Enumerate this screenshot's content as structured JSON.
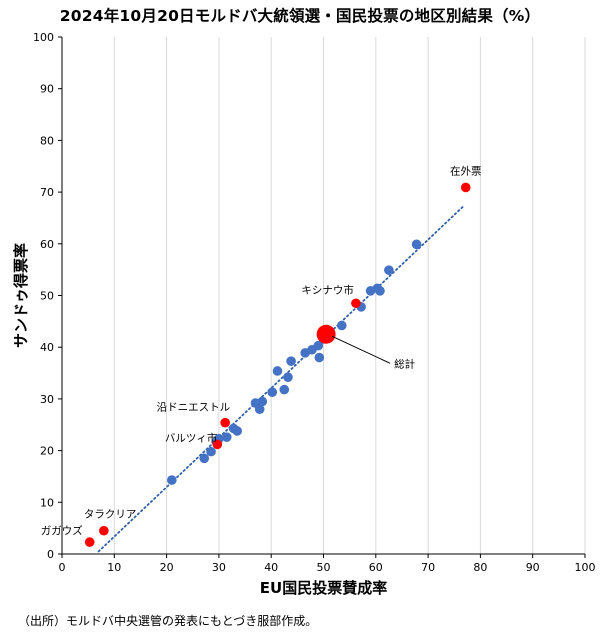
{
  "chart_data": {
    "type": "scatter",
    "title": "2024年10月20日モルドバ大統領選・国民投票の地区別結果（%）",
    "xlabel": "EU国民投票賛成率",
    "ylabel": "サンドゥ得票率",
    "xlim": [
      0,
      100
    ],
    "ylim": [
      0,
      100
    ],
    "xticks": [
      "0",
      "10",
      "20",
      "30",
      "40",
      "50",
      "60",
      "70",
      "80",
      "90",
      "100"
    ],
    "yticks": [
      "0",
      "10",
      "20",
      "30",
      "40",
      "50",
      "60",
      "70",
      "80",
      "90",
      "100"
    ],
    "grid": "vertical",
    "colors": {
      "district": "#4472C4",
      "highlight": "#FF0000",
      "trend": "#2E5FA8"
    },
    "trendline": {
      "x": [
        7,
        77
      ],
      "y": [
        0.5,
        67.5
      ],
      "style": "dotted"
    },
    "districts": [
      {
        "x": 21.0,
        "y": 14.3
      },
      {
        "x": 27.2,
        "y": 18.5
      },
      {
        "x": 28.5,
        "y": 19.8
      },
      {
        "x": 29.5,
        "y": 21.7
      },
      {
        "x": 30.0,
        "y": 22.3
      },
      {
        "x": 31.5,
        "y": 22.6
      },
      {
        "x": 32.8,
        "y": 24.3
      },
      {
        "x": 33.5,
        "y": 23.8
      },
      {
        "x": 37.0,
        "y": 29.2
      },
      {
        "x": 37.8,
        "y": 28.0
      },
      {
        "x": 38.3,
        "y": 29.5
      },
      {
        "x": 40.2,
        "y": 31.3
      },
      {
        "x": 41.2,
        "y": 35.4
      },
      {
        "x": 42.5,
        "y": 31.8
      },
      {
        "x": 43.2,
        "y": 34.2
      },
      {
        "x": 43.8,
        "y": 37.3
      },
      {
        "x": 46.5,
        "y": 38.9
      },
      {
        "x": 47.8,
        "y": 39.5
      },
      {
        "x": 49.0,
        "y": 40.3
      },
      {
        "x": 49.2,
        "y": 38.0
      },
      {
        "x": 50.0,
        "y": 41.6
      },
      {
        "x": 53.5,
        "y": 44.2
      },
      {
        "x": 57.2,
        "y": 47.8
      },
      {
        "x": 59.0,
        "y": 50.9
      },
      {
        "x": 60.3,
        "y": 51.4
      },
      {
        "x": 60.8,
        "y": 50.9
      },
      {
        "x": 62.5,
        "y": 54.9
      },
      {
        "x": 67.8,
        "y": 59.9
      }
    ],
    "highlighted": [
      {
        "label": "在外票",
        "x": 77.2,
        "y": 70.9
      },
      {
        "label": "キシナウ市",
        "x": 56.2,
        "y": 48.5
      },
      {
        "label": "総計",
        "x": 50.5,
        "y": 42.5,
        "large": true
      },
      {
        "label": "沿ドニエストル",
        "x": 31.2,
        "y": 25.4
      },
      {
        "label": "バルツィ市",
        "x": 29.7,
        "y": 21.2
      },
      {
        "label": "タラクリア",
        "x": 8.0,
        "y": 4.5
      },
      {
        "label": "ガガウズ",
        "x": 5.3,
        "y": 2.3
      }
    ]
  },
  "source_note": "（出所）モルドバ中央選管の発表にもとづき服部作成。"
}
